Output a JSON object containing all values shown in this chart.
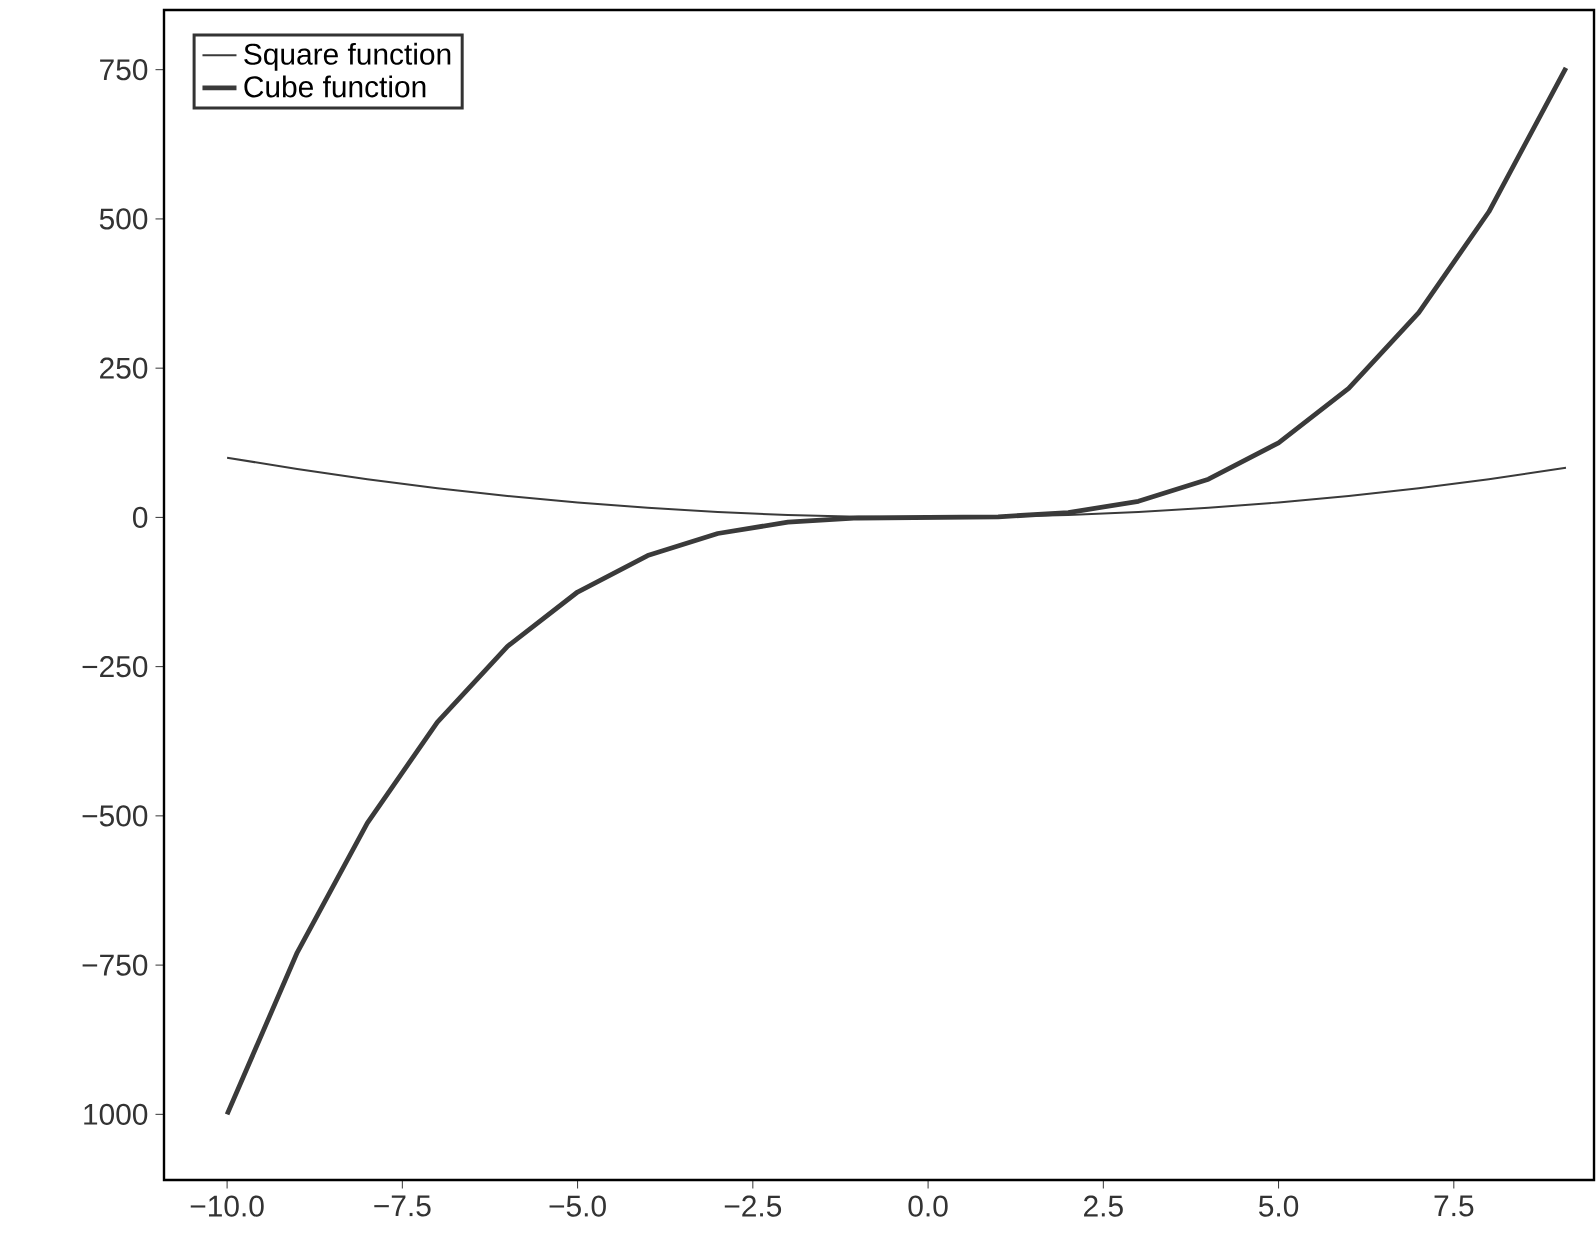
{
  "chart_data": {
    "type": "line",
    "legend": "top left",
    "grid": false,
    "marker": "none",
    "line_style": "solid",
    "xlim": [
      -10.9,
      9.5
    ],
    "ylim": [
      -1110,
      850
    ],
    "xticks": [
      {
        "value": -10,
        "label": "−10.0"
      },
      {
        "value": -7.5,
        "label": "−7.5"
      },
      {
        "value": -5,
        "label": "−5.0"
      },
      {
        "value": -2.5,
        "label": "−2.5"
      },
      {
        "value": 0,
        "label": "0.0"
      },
      {
        "value": 2.5,
        "label": "2.5"
      },
      {
        "value": 5,
        "label": "5.0"
      },
      {
        "value": 7.5,
        "label": "7.5"
      }
    ],
    "yticks": [
      {
        "value": -1000,
        "label": "1000"
      },
      {
        "value": -750,
        "label": "−750"
      },
      {
        "value": -500,
        "label": "−500"
      },
      {
        "value": -250,
        "label": "−250"
      },
      0,
      250,
      500,
      750
    ],
    "x": [
      -10,
      -9,
      -8,
      -7,
      -6,
      -5,
      -4,
      -3,
      -2,
      -1,
      0,
      1,
      2,
      3,
      4,
      5,
      6,
      7,
      8,
      9.1
    ],
    "series": [
      {
        "name": "Square function",
        "color": "#3a3a3a",
        "values": [
          100,
          81,
          64,
          49,
          36,
          25,
          16,
          9,
          4,
          1,
          0,
          1,
          4,
          9,
          16,
          25,
          36,
          49,
          64,
          83
        ]
      },
      {
        "name": "Cube function",
        "color": "#3a3a3a",
        "values": [
          -1000,
          -729,
          -512,
          -343,
          -216,
          -125,
          -64,
          -27,
          -8,
          -1,
          0,
          1,
          8,
          27,
          64,
          125,
          216,
          343,
          512,
          753
        ]
      }
    ]
  }
}
